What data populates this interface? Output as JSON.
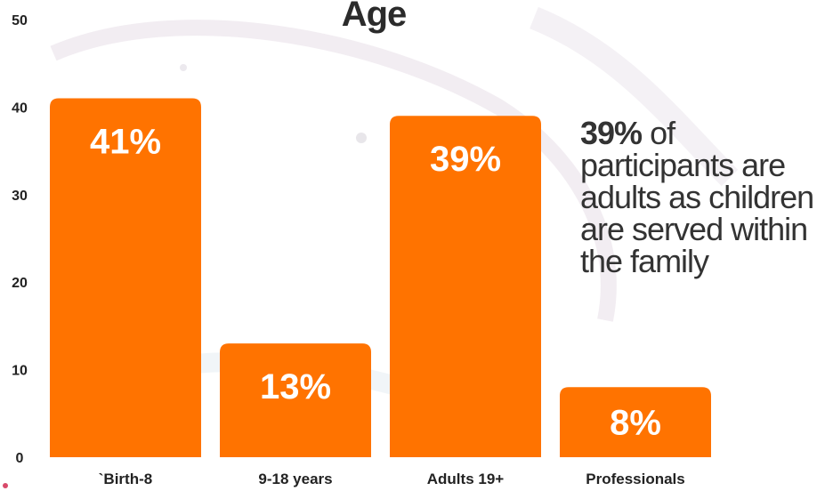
{
  "chart_data": {
    "type": "bar",
    "title": "Age",
    "categories": [
      "`Birth-8",
      "9-18 years",
      "Adults 19+",
      "Professionals"
    ],
    "values": [
      41,
      13,
      39,
      8
    ],
    "data_labels": [
      "41%",
      "13%",
      "39%",
      "8%"
    ],
    "ylim": [
      0,
      50
    ],
    "yticks": [
      "0",
      "10",
      "20",
      "30",
      "40",
      "50"
    ],
    "xlabel": "",
    "ylabel": "",
    "grid": false,
    "legend": "none",
    "bar_color": "#ff7300"
  },
  "callout": {
    "percent": "39%",
    "text": " of participants are adults as children are served within the family"
  },
  "colors": {
    "bar": "#ff7300",
    "label_inside": "#ffffff",
    "axis_text": "#222222",
    "title": "#2b2b2b",
    "callout": "#333333"
  }
}
